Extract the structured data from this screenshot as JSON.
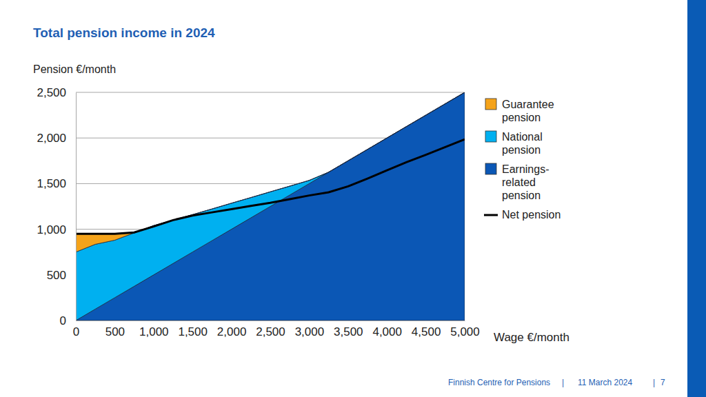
{
  "chart_data": {
    "type": "area",
    "stacked": true,
    "title": "Total pension income in 2024",
    "y_label": "Pension €/month",
    "x_label": "Wage €/month",
    "x": [
      0,
      250,
      500,
      750,
      1000,
      1250,
      1500,
      1750,
      2000,
      2250,
      2500,
      2750,
      3000,
      3250,
      3500,
      3750,
      4000,
      4250,
      4500,
      4750,
      5000
    ],
    "series": [
      {
        "name": "Guarantee pension",
        "color": "#f5a31a",
        "type": "area",
        "values": [
          205,
          120,
          75,
          0,
          0,
          0,
          0,
          0,
          0,
          0,
          0,
          0,
          0,
          0,
          0,
          0,
          0,
          0,
          0,
          0,
          0
        ]
      },
      {
        "name": "National pension",
        "color": "#00b0f0",
        "type": "area",
        "values": [
          750,
          710,
          630,
          585,
          540,
          475,
          410,
          347,
          285,
          222,
          160,
          97,
          35,
          0,
          0,
          0,
          0,
          0,
          0,
          0,
          0
        ]
      },
      {
        "name": "Earnings-related pension",
        "color": "#0b57b5",
        "type": "area",
        "values": [
          0,
          125,
          250,
          375,
          500,
          625,
          750,
          875,
          1000,
          1125,
          1250,
          1375,
          1500,
          1625,
          1750,
          1875,
          2000,
          2125,
          2250,
          2375,
          2500
        ]
      },
      {
        "name": "Net pension",
        "color": "#000000",
        "type": "line",
        "values": [
          950,
          950,
          950,
          965,
          1030,
          1100,
          1150,
          1185,
          1220,
          1255,
          1290,
          1330,
          1370,
          1405,
          1470,
          1555,
          1645,
          1735,
          1815,
          1900,
          1985
        ]
      }
    ],
    "xlim": [
      0,
      5000
    ],
    "xticks": [
      0,
      500,
      {
        "value": 1000,
        "label": "1,000"
      },
      {
        "value": 1500,
        "label": "1,500"
      },
      {
        "value": 2000,
        "label": "2,000"
      },
      {
        "value": 2500,
        "label": "2,500"
      },
      {
        "value": 3000,
        "label": "3,000"
      },
      {
        "value": 3500,
        "label": "3,500"
      },
      {
        "value": 4000,
        "label": "4,000"
      },
      {
        "value": 4500,
        "label": "4,500"
      },
      {
        "value": 5000,
        "label": "5,000"
      }
    ],
    "ylim": [
      0,
      2500
    ],
    "yticks": [
      0,
      500,
      {
        "value": 1000,
        "label": "1,000"
      },
      {
        "value": 1500,
        "label": "1,500"
      },
      {
        "value": 2000,
        "label": "2,000"
      },
      {
        "value": 2500,
        "label": "2,500"
      }
    ],
    "grid": true,
    "legend": "right"
  },
  "footer": {
    "organization": "Finnish Centre for Pensions",
    "separator": "|",
    "date": "11 March 2024",
    "page": "7"
  }
}
